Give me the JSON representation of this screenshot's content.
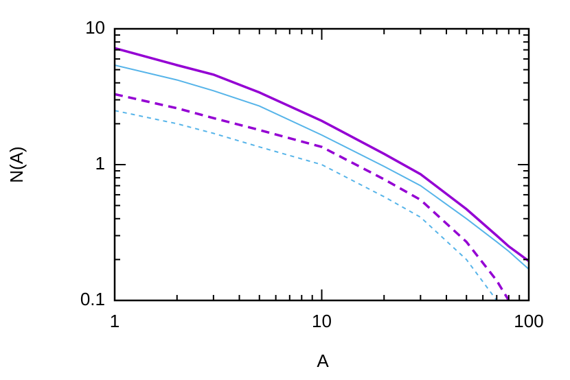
{
  "chart_data": {
    "type": "line",
    "xlabel": "A",
    "ylabel": "N(A)",
    "x": [
      1,
      2,
      3,
      5,
      10,
      20,
      30,
      50,
      70,
      80,
      100
    ],
    "series": [
      {
        "color": "#9400d3",
        "dash": false,
        "width": 3.5,
        "values": [
          7.2,
          5.4,
          4.6,
          3.4,
          2.1,
          1.2,
          0.85,
          0.47,
          0.3,
          0.25,
          0.195
        ]
      },
      {
        "color": "#56b4e9",
        "dash": false,
        "width": 2,
        "values": [
          5.4,
          4.2,
          3.5,
          2.7,
          1.65,
          0.97,
          0.7,
          0.4,
          0.27,
          0.23,
          0.17
        ]
      },
      {
        "color": "#9400d3",
        "dash": true,
        "width": 3.5,
        "values": [
          3.3,
          2.6,
          2.2,
          1.8,
          1.35,
          0.78,
          0.55,
          0.27,
          0.14,
          0.1,
          null
        ]
      },
      {
        "color": "#56b4e9",
        "dash": true,
        "width": 2,
        "values": [
          2.5,
          2.0,
          1.7,
          1.35,
          1.0,
          0.58,
          0.41,
          0.2,
          0.1,
          null,
          null
        ]
      }
    ],
    "xlog": true,
    "ylog": true,
    "xlim": [
      1,
      100
    ],
    "ylim": [
      0.1,
      10
    ],
    "xticks": [
      1,
      10,
      100
    ],
    "yticks": [
      0.1,
      1,
      10
    ],
    "xminorticks": [
      2,
      3,
      4,
      5,
      6,
      7,
      8,
      9,
      20,
      30,
      40,
      50,
      60,
      70,
      80,
      90
    ],
    "yminorticks": [
      0.2,
      0.3,
      0.4,
      0.5,
      0.6,
      0.7,
      0.8,
      0.9,
      2,
      3,
      4,
      5,
      6,
      7,
      8,
      9
    ]
  }
}
